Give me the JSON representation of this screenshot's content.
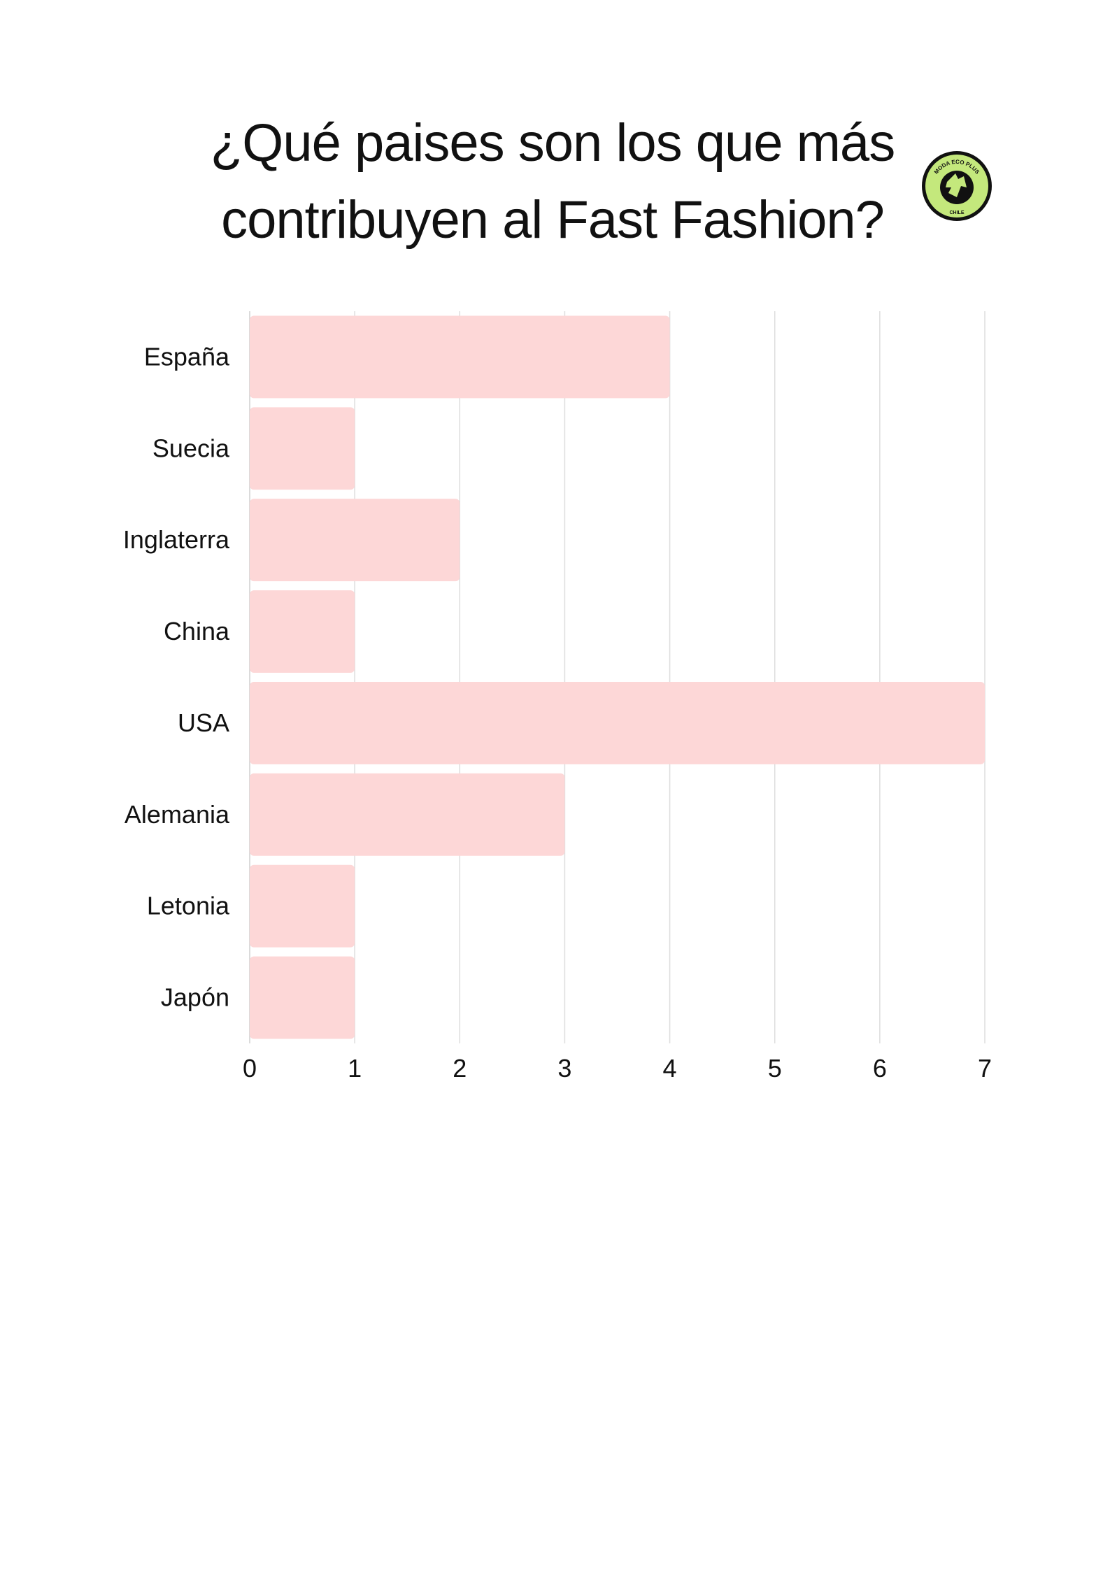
{
  "title_line1": "¿Qué paises son los que más",
  "title_line2": "contribuyen al  Fast Fashion?",
  "logo": {
    "text_top": "MODA ECO PLUS",
    "text_bottom": "CHILE",
    "color": "#c4e87c"
  },
  "chart_data": {
    "type": "bar",
    "orientation": "horizontal",
    "categories": [
      "España",
      "Suecia",
      "Inglaterra",
      "China",
      "USA",
      "Alemania",
      "Letonia",
      "Japón"
    ],
    "values": [
      4,
      1,
      2,
      1,
      7,
      3,
      1,
      1
    ],
    "xlim": [
      0,
      7
    ],
    "xticks": [
      0,
      1,
      2,
      3,
      4,
      5,
      6,
      7
    ],
    "grid": "vertical",
    "bar_color": "#fdd7d7"
  }
}
